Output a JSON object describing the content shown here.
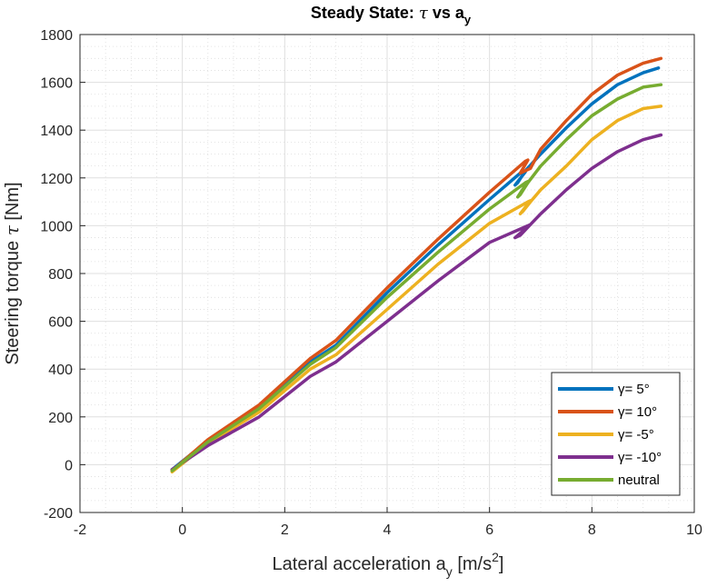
{
  "chart_data": {
    "type": "line",
    "title_main": "Steady State: ",
    "title_tau": "τ",
    "title_mid": " vs a",
    "title_sub": "y",
    "xlabel_main": "Lateral acceleration a",
    "xlabel_sub": "y",
    "xlabel_units": " [m/s",
    "xlabel_sup": "2",
    "xlabel_end": "]",
    "ylabel_main": "Steering torque ",
    "ylabel_tau": "τ",
    "ylabel_units": " [Nm]",
    "xlim": [
      -2,
      10
    ],
    "ylim": [
      -200,
      1800
    ],
    "xticks": [
      -2,
      0,
      2,
      4,
      6,
      8,
      10
    ],
    "yticks": [
      -200,
      0,
      200,
      400,
      600,
      800,
      1000,
      1200,
      1400,
      1600,
      1800
    ],
    "xtick_labels": [
      "-2",
      "0",
      "2",
      "4",
      "6",
      "8",
      "10"
    ],
    "ytick_labels": [
      "-200",
      "0",
      "200",
      "400",
      "600",
      "800",
      "1000",
      "1200",
      "1400",
      "1600",
      "1800"
    ],
    "grid": true,
    "minor_grid": true,
    "legend_position": "bottom-right",
    "series": [
      {
        "name": "γ= 5°",
        "color": "#0072BD",
        "x": [
          -0.2,
          0.5,
          1.5,
          2.5,
          3.0,
          4.0,
          5.0,
          6.0,
          6.6,
          6.7,
          6.5,
          6.55,
          6.7,
          7.0,
          7.5,
          8.0,
          8.5,
          9.0,
          9.3
        ],
        "y": [
          -20,
          100,
          240,
          430,
          500,
          720,
          920,
          1110,
          1220,
          1225,
          1170,
          1180,
          1230,
          1300,
          1410,
          1510,
          1590,
          1640,
          1660
        ]
      },
      {
        "name": "γ= 10°",
        "color": "#D95319",
        "x": [
          -0.2,
          0.5,
          1.5,
          2.5,
          3.0,
          4.0,
          5.0,
          6.0,
          6.7,
          6.75,
          6.6,
          6.8,
          7.0,
          7.5,
          8.0,
          8.5,
          9.0,
          9.35
        ],
        "y": [
          -25,
          105,
          250,
          445,
          520,
          740,
          945,
          1140,
          1270,
          1275,
          1220,
          1240,
          1320,
          1440,
          1550,
          1630,
          1680,
          1700
        ]
      },
      {
        "name": "γ= -5°",
        "color": "#EDB120",
        "x": [
          -0.2,
          0.5,
          1.5,
          2.5,
          3.0,
          4.0,
          5.0,
          6.0,
          6.75,
          6.8,
          6.6,
          6.65,
          6.8,
          7.0,
          7.5,
          8.0,
          8.5,
          9.0,
          9.35
        ],
        "y": [
          -30,
          90,
          220,
          400,
          460,
          650,
          840,
          1010,
          1100,
          1105,
          1050,
          1060,
          1100,
          1150,
          1250,
          1360,
          1440,
          1490,
          1500
        ]
      },
      {
        "name": "γ= -10°",
        "color": "#7E2F8E",
        "x": [
          -0.2,
          0.5,
          1.5,
          2.5,
          3.0,
          4.0,
          5.0,
          6.0,
          6.75,
          6.8,
          6.5,
          6.6,
          6.8,
          7.0,
          7.5,
          8.0,
          8.5,
          9.0,
          9.35
        ],
        "y": [
          -20,
          80,
          200,
          370,
          430,
          600,
          770,
          930,
          1000,
          1005,
          950,
          960,
          1005,
          1050,
          1150,
          1240,
          1310,
          1360,
          1380
        ]
      },
      {
        "name": "neutral",
        "color": "#77AC30",
        "x": [
          -0.2,
          0.5,
          1.5,
          2.5,
          3.0,
          4.0,
          5.0,
          6.0,
          6.7,
          6.75,
          6.55,
          6.6,
          6.75,
          7.0,
          7.5,
          8.0,
          8.5,
          9.0,
          9.35
        ],
        "y": [
          -25,
          95,
          235,
          420,
          490,
          700,
          890,
          1070,
          1180,
          1185,
          1120,
          1130,
          1180,
          1250,
          1360,
          1460,
          1530,
          1580,
          1590
        ]
      }
    ]
  }
}
